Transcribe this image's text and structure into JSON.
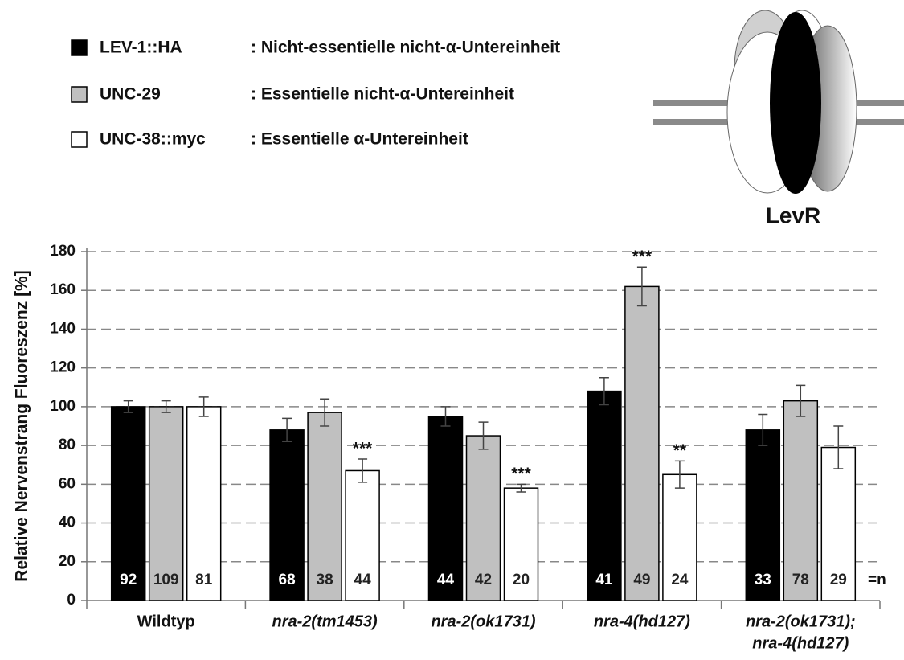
{
  "chart_data": {
    "type": "bar",
    "ylabel": "Relative Nervenstrang Fluoreszenz [%]",
    "categories": [
      "Wildtyp",
      "nra-2(tm1453)",
      "nra-2(ok1731)",
      "nra-4(hd127)",
      [
        "nra-2(ok1731);",
        "nra-4(hd127)"
      ]
    ],
    "category_italic": [
      false,
      true,
      true,
      true,
      true
    ],
    "series": [
      {
        "name": "LEV-1::HA",
        "description": ": Nicht-essentielle nicht-α-Untereinheit",
        "color": "#000000",
        "values": [
          100,
          88,
          95,
          108,
          88
        ],
        "errors": [
          3,
          6,
          5,
          7,
          8
        ],
        "n": [
          92,
          68,
          44,
          41,
          33
        ],
        "significance": [
          null,
          null,
          null,
          null,
          null
        ]
      },
      {
        "name": "UNC-29",
        "description": ": Essentielle nicht-α-Untereinheit",
        "color": "#c0c0c0",
        "values": [
          100,
          97,
          85,
          162,
          103
        ],
        "errors": [
          3,
          7,
          7,
          10,
          8
        ],
        "n": [
          109,
          38,
          42,
          49,
          78
        ],
        "significance": [
          null,
          null,
          null,
          "***",
          null
        ]
      },
      {
        "name": "UNC-38::myc",
        "description": ": Essentielle α-Untereinheit",
        "color": "#ffffff",
        "values": [
          100,
          67,
          58,
          65,
          79
        ],
        "errors": [
          5,
          6,
          2,
          7,
          11
        ],
        "n": [
          81,
          44,
          20,
          24,
          29
        ],
        "significance": [
          null,
          "***",
          "***",
          "**",
          null
        ]
      }
    ],
    "n_label": "=n",
    "ylim": [
      0,
      180
    ],
    "yticks": [
      0,
      20,
      40,
      60,
      80,
      100,
      120,
      140,
      160,
      180
    ],
    "grid": true
  },
  "diagram_label": "LevR"
}
